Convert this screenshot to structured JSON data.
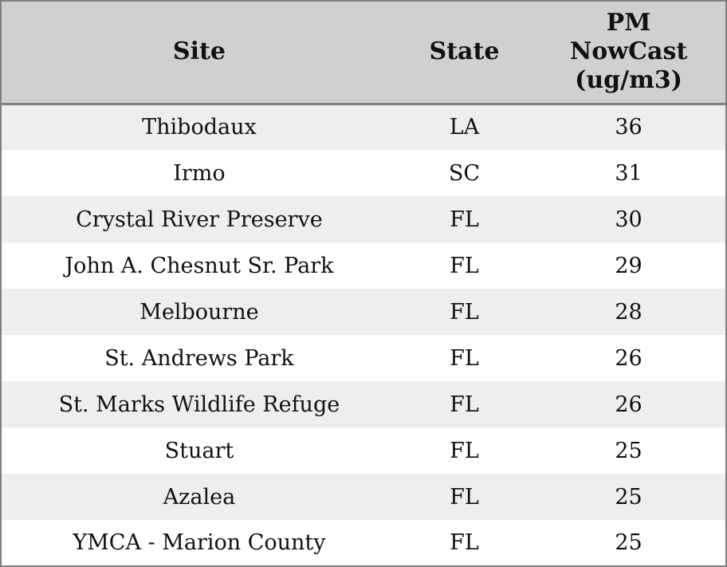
{
  "colors": {
    "header_background": "#d0d0d0",
    "row_alternate": "#eeeeee",
    "row_base": "#ffffff",
    "border": "#808080",
    "text": "#111111"
  },
  "table": {
    "columns": [
      "Site",
      "State",
      "PM NowCast (ug/m3)"
    ],
    "rows": [
      {
        "site": "Thibodaux",
        "state": "LA",
        "pm_nowcast": "36"
      },
      {
        "site": "Irmo",
        "state": "SC",
        "pm_nowcast": "31"
      },
      {
        "site": "Crystal River Preserve",
        "state": "FL",
        "pm_nowcast": "30"
      },
      {
        "site": "John A. Chesnut Sr. Park",
        "state": "FL",
        "pm_nowcast": "29"
      },
      {
        "site": "Melbourne",
        "state": "FL",
        "pm_nowcast": "28"
      },
      {
        "site": "St. Andrews Park",
        "state": "FL",
        "pm_nowcast": "26"
      },
      {
        "site": "St. Marks Wildlife Refuge",
        "state": "FL",
        "pm_nowcast": "26"
      },
      {
        "site": "Stuart",
        "state": "FL",
        "pm_nowcast": "25"
      },
      {
        "site": "Azalea",
        "state": "FL",
        "pm_nowcast": "25"
      },
      {
        "site": "YMCA - Marion County",
        "state": "FL",
        "pm_nowcast": "25"
      }
    ]
  }
}
